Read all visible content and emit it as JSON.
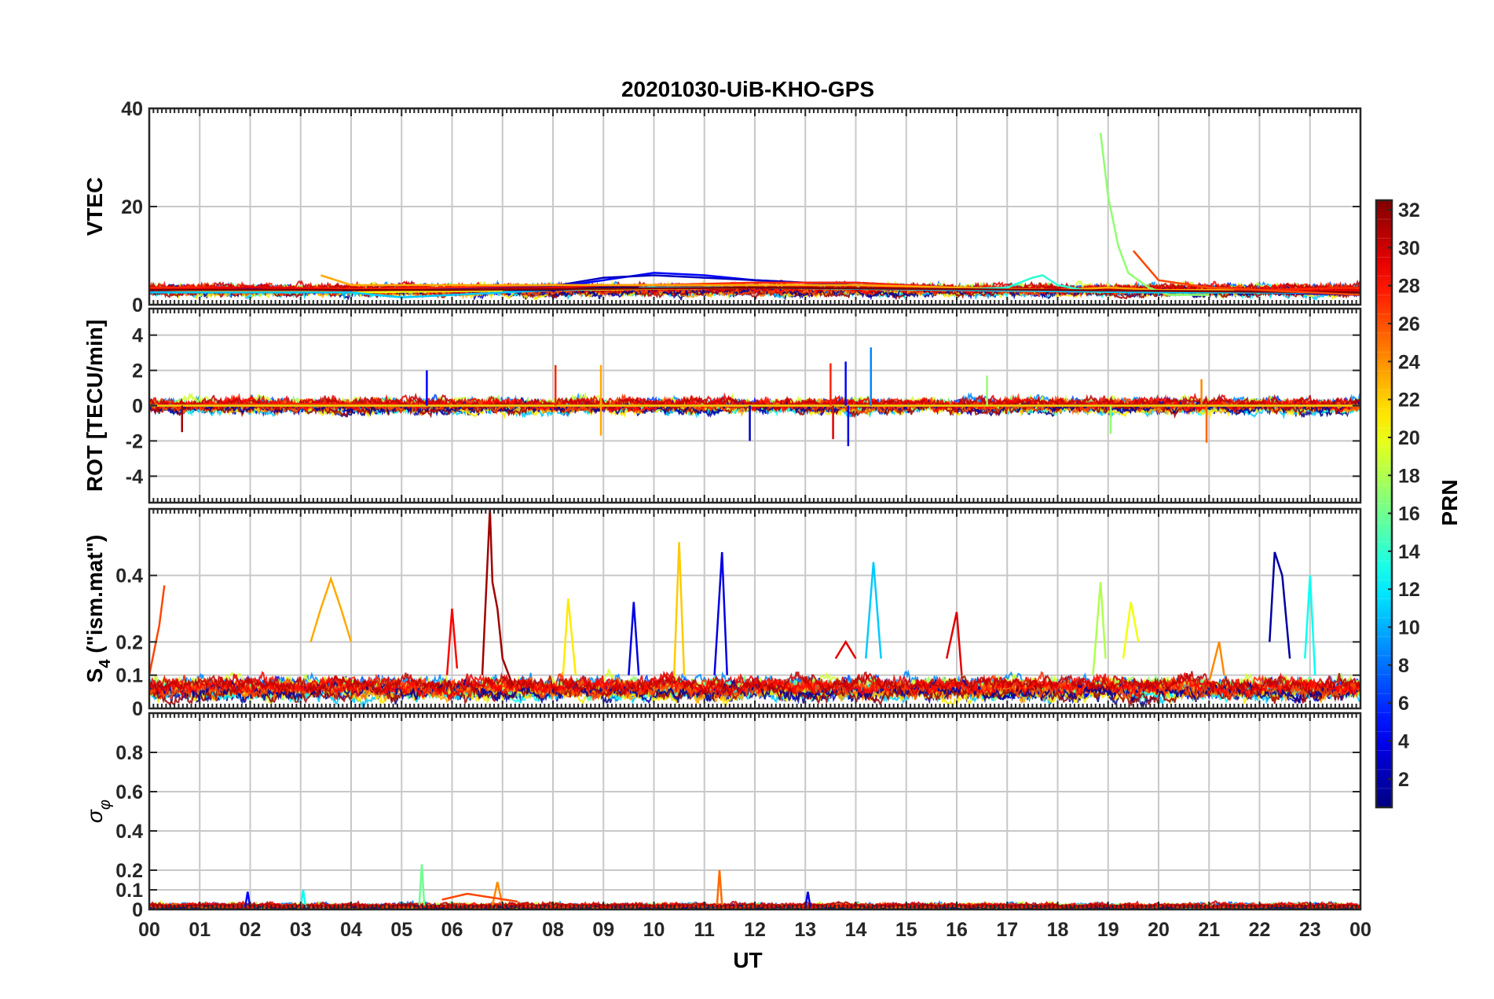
{
  "chart_data": {
    "type": "line",
    "title": "20201030-UiB-KHO-GPS",
    "xlabel": "UT",
    "x_tick_labels": [
      "00",
      "01",
      "02",
      "03",
      "04",
      "05",
      "06",
      "07",
      "08",
      "09",
      "10",
      "11",
      "12",
      "13",
      "14",
      "15",
      "16",
      "17",
      "18",
      "19",
      "20",
      "21",
      "22",
      "23",
      "00"
    ],
    "xlim": [
      0,
      24
    ],
    "colorbar": {
      "label": "PRN",
      "colormap": "jet",
      "range": [
        1,
        32
      ],
      "tick_labels": [
        "2",
        "4",
        "6",
        "8",
        "10",
        "12",
        "14",
        "16",
        "18",
        "20",
        "22",
        "24",
        "26",
        "28",
        "30",
        "32"
      ],
      "tick_values": [
        2,
        4,
        6,
        8,
        10,
        12,
        14,
        16,
        18,
        20,
        22,
        24,
        26,
        28,
        30,
        32
      ]
    },
    "panels": [
      {
        "id": "vtec",
        "ylabel": "VTEC",
        "ylim": [
          0,
          40
        ],
        "yticks": [
          0,
          20,
          40
        ],
        "ytick_labels": [
          "0",
          "20",
          "40"
        ],
        "baseline": 3,
        "noise": 0.7,
        "series": [
          {
            "prn": 5,
            "x": [
              0,
              2,
              4,
              6,
              8,
              9,
              10,
              11,
              12,
              13,
              14,
              16,
              18,
              20,
              22,
              24
            ],
            "y": [
              2.5,
              3,
              3,
              3,
              3.5,
              5,
              6.5,
              6,
              5,
              4.5,
              4.5,
              3.5,
              3,
              3,
              2.5,
              2.5
            ]
          },
          {
            "prn": 3,
            "x": [
              0,
              2,
              4,
              6,
              8,
              9,
              10,
              11,
              12,
              13,
              14,
              16,
              18,
              20,
              22,
              24
            ],
            "y": [
              3,
              3.2,
              3,
              3.2,
              3.8,
              5.5,
              6,
              5.5,
              5,
              4.5,
              4,
              3.5,
              3,
              3,
              2.5,
              2
            ]
          },
          {
            "prn": 27,
            "x": [
              0,
              2,
              4,
              6,
              8,
              10,
              12,
              14,
              16,
              18,
              20,
              22,
              24
            ],
            "y": [
              3.5,
              3.5,
              3.2,
              3.5,
              4,
              4,
              4.5,
              4.5,
              3.5,
              3,
              3,
              3,
              3.5
            ]
          },
          {
            "prn": 29,
            "x": [
              0,
              2,
              4,
              6,
              8,
              10,
              12,
              14,
              16,
              18,
              20,
              22,
              24
            ],
            "y": [
              3,
              3.5,
              3,
              3,
              3.5,
              4,
              4,
              4,
              3,
              3,
              3,
              2.5,
              3
            ]
          },
          {
            "prn": 23,
            "x": [
              3.4,
              4,
              6,
              8,
              10,
              12,
              14,
              16,
              18,
              19,
              20,
              21.5
            ],
            "y": [
              6,
              4,
              4,
              4,
              4,
              4,
              4,
              3.5,
              3,
              3.5,
              3,
              3
            ]
          },
          {
            "prn": 17,
            "x": [
              18.85,
              19,
              19.2,
              19.4,
              19.8,
              20.2,
              21
            ],
            "y": [
              35,
              22,
              12,
              6.5,
              3.5,
              2,
              2
            ]
          },
          {
            "prn": 14,
            "x": [
              16,
              17,
              17.5,
              17.7,
              18,
              18.5
            ],
            "y": [
              3,
              3.5,
              5.5,
              6,
              4,
              3
            ]
          },
          {
            "prn": 20,
            "x": [
              0,
              4,
              8,
              12,
              16,
              20,
              24
            ],
            "y": [
              3,
              2.5,
              3,
              3.5,
              3,
              2.5,
              2.5
            ]
          },
          {
            "prn": 11,
            "x": [
              0,
              4,
              5,
              6,
              8,
              10,
              12,
              16,
              20,
              24
            ],
            "y": [
              2.5,
              2.5,
              1.5,
              2,
              3,
              3.5,
              3.5,
              3,
              2.5,
              2.5
            ]
          },
          {
            "prn": 1,
            "x": [
              7,
              8,
              9,
              9.7
            ],
            "y": [
              3,
              3,
              3.5,
              3.5
            ]
          },
          {
            "prn": 32,
            "x": [
              0,
              6,
              12,
              18,
              24
            ],
            "y": [
              3,
              3,
              3.5,
              3,
              2.5
            ]
          },
          {
            "prn": 26,
            "x": [
              19.5,
              20,
              21,
              22,
              23,
              24
            ],
            "y": [
              11,
              5,
              3.5,
              3,
              2.5,
              2
            ]
          }
        ]
      },
      {
        "id": "rot",
        "ylabel": "ROT [TECU/min]",
        "ylim": [
          -5.5,
          5.5
        ],
        "yticks": [
          -4,
          -2,
          0,
          2,
          4
        ],
        "ytick_labels": [
          "-4",
          "-2",
          "0",
          "2",
          "4"
        ],
        "baseline": 0,
        "noise": 0.25,
        "series": [
          {
            "prn": 27,
            "x": [
              0,
              3,
              6,
              8,
              10,
              12,
              14,
              16,
              18,
              20,
              22,
              24
            ],
            "y": [
              0,
              0.1,
              0,
              0,
              0,
              0,
              0,
              0,
              0,
              0,
              0,
              0
            ]
          },
          {
            "prn": 3,
            "x": [
              0,
              4,
              8,
              12,
              16,
              20,
              24
            ],
            "y": [
              0,
              0,
              0,
              0,
              0,
              0,
              0
            ]
          },
          {
            "prn": 13,
            "x": [
              0,
              6,
              12,
              18,
              24
            ],
            "y": [
              0,
              0,
              0,
              0,
              0
            ]
          },
          {
            "prn": 31,
            "x": [
              0,
              6,
              12,
              18,
              24
            ],
            "y": [
              0,
              0,
              0,
              0,
              0
            ]
          },
          {
            "prn": 22,
            "x": [
              0,
              6,
              12,
              18,
              24
            ],
            "y": [
              0,
              0,
              0,
              0,
              0
            ]
          }
        ],
        "spikes": [
          {
            "prn": 27,
            "x": 8.05,
            "y": 2.3
          },
          {
            "prn": 23,
            "x": 8.95,
            "y": 2.3
          },
          {
            "prn": 23,
            "x": 8.95,
            "y": -1.7
          },
          {
            "prn": 5,
            "x": 5.5,
            "y": 2.0
          },
          {
            "prn": 3,
            "x": 11.9,
            "y": -2.0
          },
          {
            "prn": 27,
            "x": 13.5,
            "y": 2.4
          },
          {
            "prn": 5,
            "x": 13.8,
            "y": 2.5
          },
          {
            "prn": 9,
            "x": 14.3,
            "y": 3.3
          },
          {
            "prn": 4,
            "x": 13.85,
            "y": -2.3
          },
          {
            "prn": 29,
            "x": 13.55,
            "y": -1.9
          },
          {
            "prn": 24,
            "x": 20.85,
            "y": 1.5
          },
          {
            "prn": 25,
            "x": 20.95,
            "y": -2.1
          },
          {
            "prn": 17,
            "x": 19.05,
            "y": -1.6
          },
          {
            "prn": 31,
            "x": 0.65,
            "y": -1.5
          },
          {
            "prn": 17,
            "x": 16.6,
            "y": 1.7
          }
        ]
      },
      {
        "id": "s4",
        "ylabel": "S4 (\"ism.mat\")",
        "ylabel_main": "S",
        "ylabel_sub": "4",
        "ylabel_rest": " (\"ism.mat\")",
        "ylim": [
          0,
          0.6
        ],
        "yticks": [
          0,
          0.1,
          0.2,
          0.4
        ],
        "ytick_labels": [
          "0",
          "0.1",
          "0.2",
          "0.4"
        ],
        "baseline": 0.06,
        "noise": 0.02,
        "series": [
          {
            "prn": 31,
            "x": [
              6.6,
              6.75,
              6.8,
              6.9,
              7.0,
              7.2
            ],
            "y": [
              0.1,
              0.6,
              0.38,
              0.3,
              0.15,
              0.07
            ]
          },
          {
            "prn": 23,
            "x": [
              3.2,
              3.4,
              3.6,
              3.8,
              4.0
            ],
            "y": [
              0.2,
              0.3,
              0.39,
              0.3,
              0.2
            ]
          },
          {
            "prn": 26,
            "x": [
              0,
              0.2,
              0.3
            ],
            "y": [
              0.1,
              0.25,
              0.37
            ]
          },
          {
            "prn": 22,
            "x": [
              10.4,
              10.5,
              10.6
            ],
            "y": [
              0.1,
              0.5,
              0.1
            ]
          },
          {
            "prn": 4,
            "x": [
              11.2,
              11.35,
              11.45
            ],
            "y": [
              0.1,
              0.47,
              0.1
            ]
          },
          {
            "prn": 11,
            "x": [
              14.2,
              14.35,
              14.5
            ],
            "y": [
              0.15,
              0.44,
              0.15
            ]
          },
          {
            "prn": 2,
            "x": [
              22.2,
              22.3,
              22.45,
              22.6
            ],
            "y": [
              0.2,
              0.47,
              0.4,
              0.15
            ]
          },
          {
            "prn": 13,
            "x": [
              22.9,
              23.0,
              23.1
            ],
            "y": [
              0.15,
              0.4,
              0.1
            ]
          },
          {
            "prn": 18,
            "x": [
              18.7,
              18.85,
              18.95
            ],
            "y": [
              0.1,
              0.38,
              0.15
            ]
          },
          {
            "prn": 20,
            "x": [
              19.3,
              19.45,
              19.6
            ],
            "y": [
              0.15,
              0.32,
              0.2
            ]
          },
          {
            "prn": 21,
            "x": [
              8.2,
              8.3,
              8.45
            ],
            "y": [
              0.1,
              0.33,
              0.1
            ]
          },
          {
            "prn": 28,
            "x": [
              5.9,
              6.0,
              6.1
            ],
            "y": [
              0.1,
              0.3,
              0.12
            ]
          },
          {
            "prn": 29,
            "x": [
              15.8,
              16.0,
              16.1
            ],
            "y": [
              0.15,
              0.29,
              0.1
            ]
          },
          {
            "prn": 24,
            "x": [
              21.0,
              21.2,
              21.3
            ],
            "y": [
              0.08,
              0.2,
              0.1
            ]
          },
          {
            "prn": 4,
            "x": [
              9.5,
              9.6,
              9.7
            ],
            "y": [
              0.1,
              0.32,
              0.1
            ]
          },
          {
            "prn": 29,
            "x": [
              13.6,
              13.8,
              14.0
            ],
            "y": [
              0.15,
              0.2,
              0.15
            ]
          }
        ]
      },
      {
        "id": "sigphi",
        "ylabel": "σ φ",
        "ylabel_main": "σ",
        "ylabel_sub": "φ",
        "ylim": [
          0,
          1
        ],
        "yticks": [
          0,
          0.1,
          0.2,
          0.4,
          0.6,
          0.8
        ],
        "ytick_labels": [
          "0",
          "0.1",
          "0.2",
          "0.4",
          "0.6",
          "0.8"
        ],
        "baseline": 0.015,
        "noise": 0.01,
        "series": [
          {
            "prn": 16,
            "x": [
              5.35,
              5.4,
              5.45
            ],
            "y": [
              0.02,
              0.23,
              0.02
            ]
          },
          {
            "prn": 25,
            "x": [
              11.25,
              11.3,
              11.35
            ],
            "y": [
              0.02,
              0.2,
              0.02
            ]
          },
          {
            "prn": 24,
            "x": [
              6.8,
              6.9,
              7.0
            ],
            "y": [
              0.02,
              0.14,
              0.02
            ]
          },
          {
            "prn": 13,
            "x": [
              3.0,
              3.05,
              3.1
            ],
            "y": [
              0.01,
              0.1,
              0.01
            ]
          },
          {
            "prn": 5,
            "x": [
              1.9,
              1.95,
              2.0
            ],
            "y": [
              0.01,
              0.09,
              0.01
            ]
          },
          {
            "prn": 4,
            "x": [
              13.0,
              13.05,
              13.1
            ],
            "y": [
              0.01,
              0.09,
              0.01
            ]
          },
          {
            "prn": 26,
            "x": [
              5.8,
              6.3,
              6.8,
              7.3
            ],
            "y": [
              0.05,
              0.08,
              0.06,
              0.04
            ]
          }
        ]
      }
    ]
  }
}
